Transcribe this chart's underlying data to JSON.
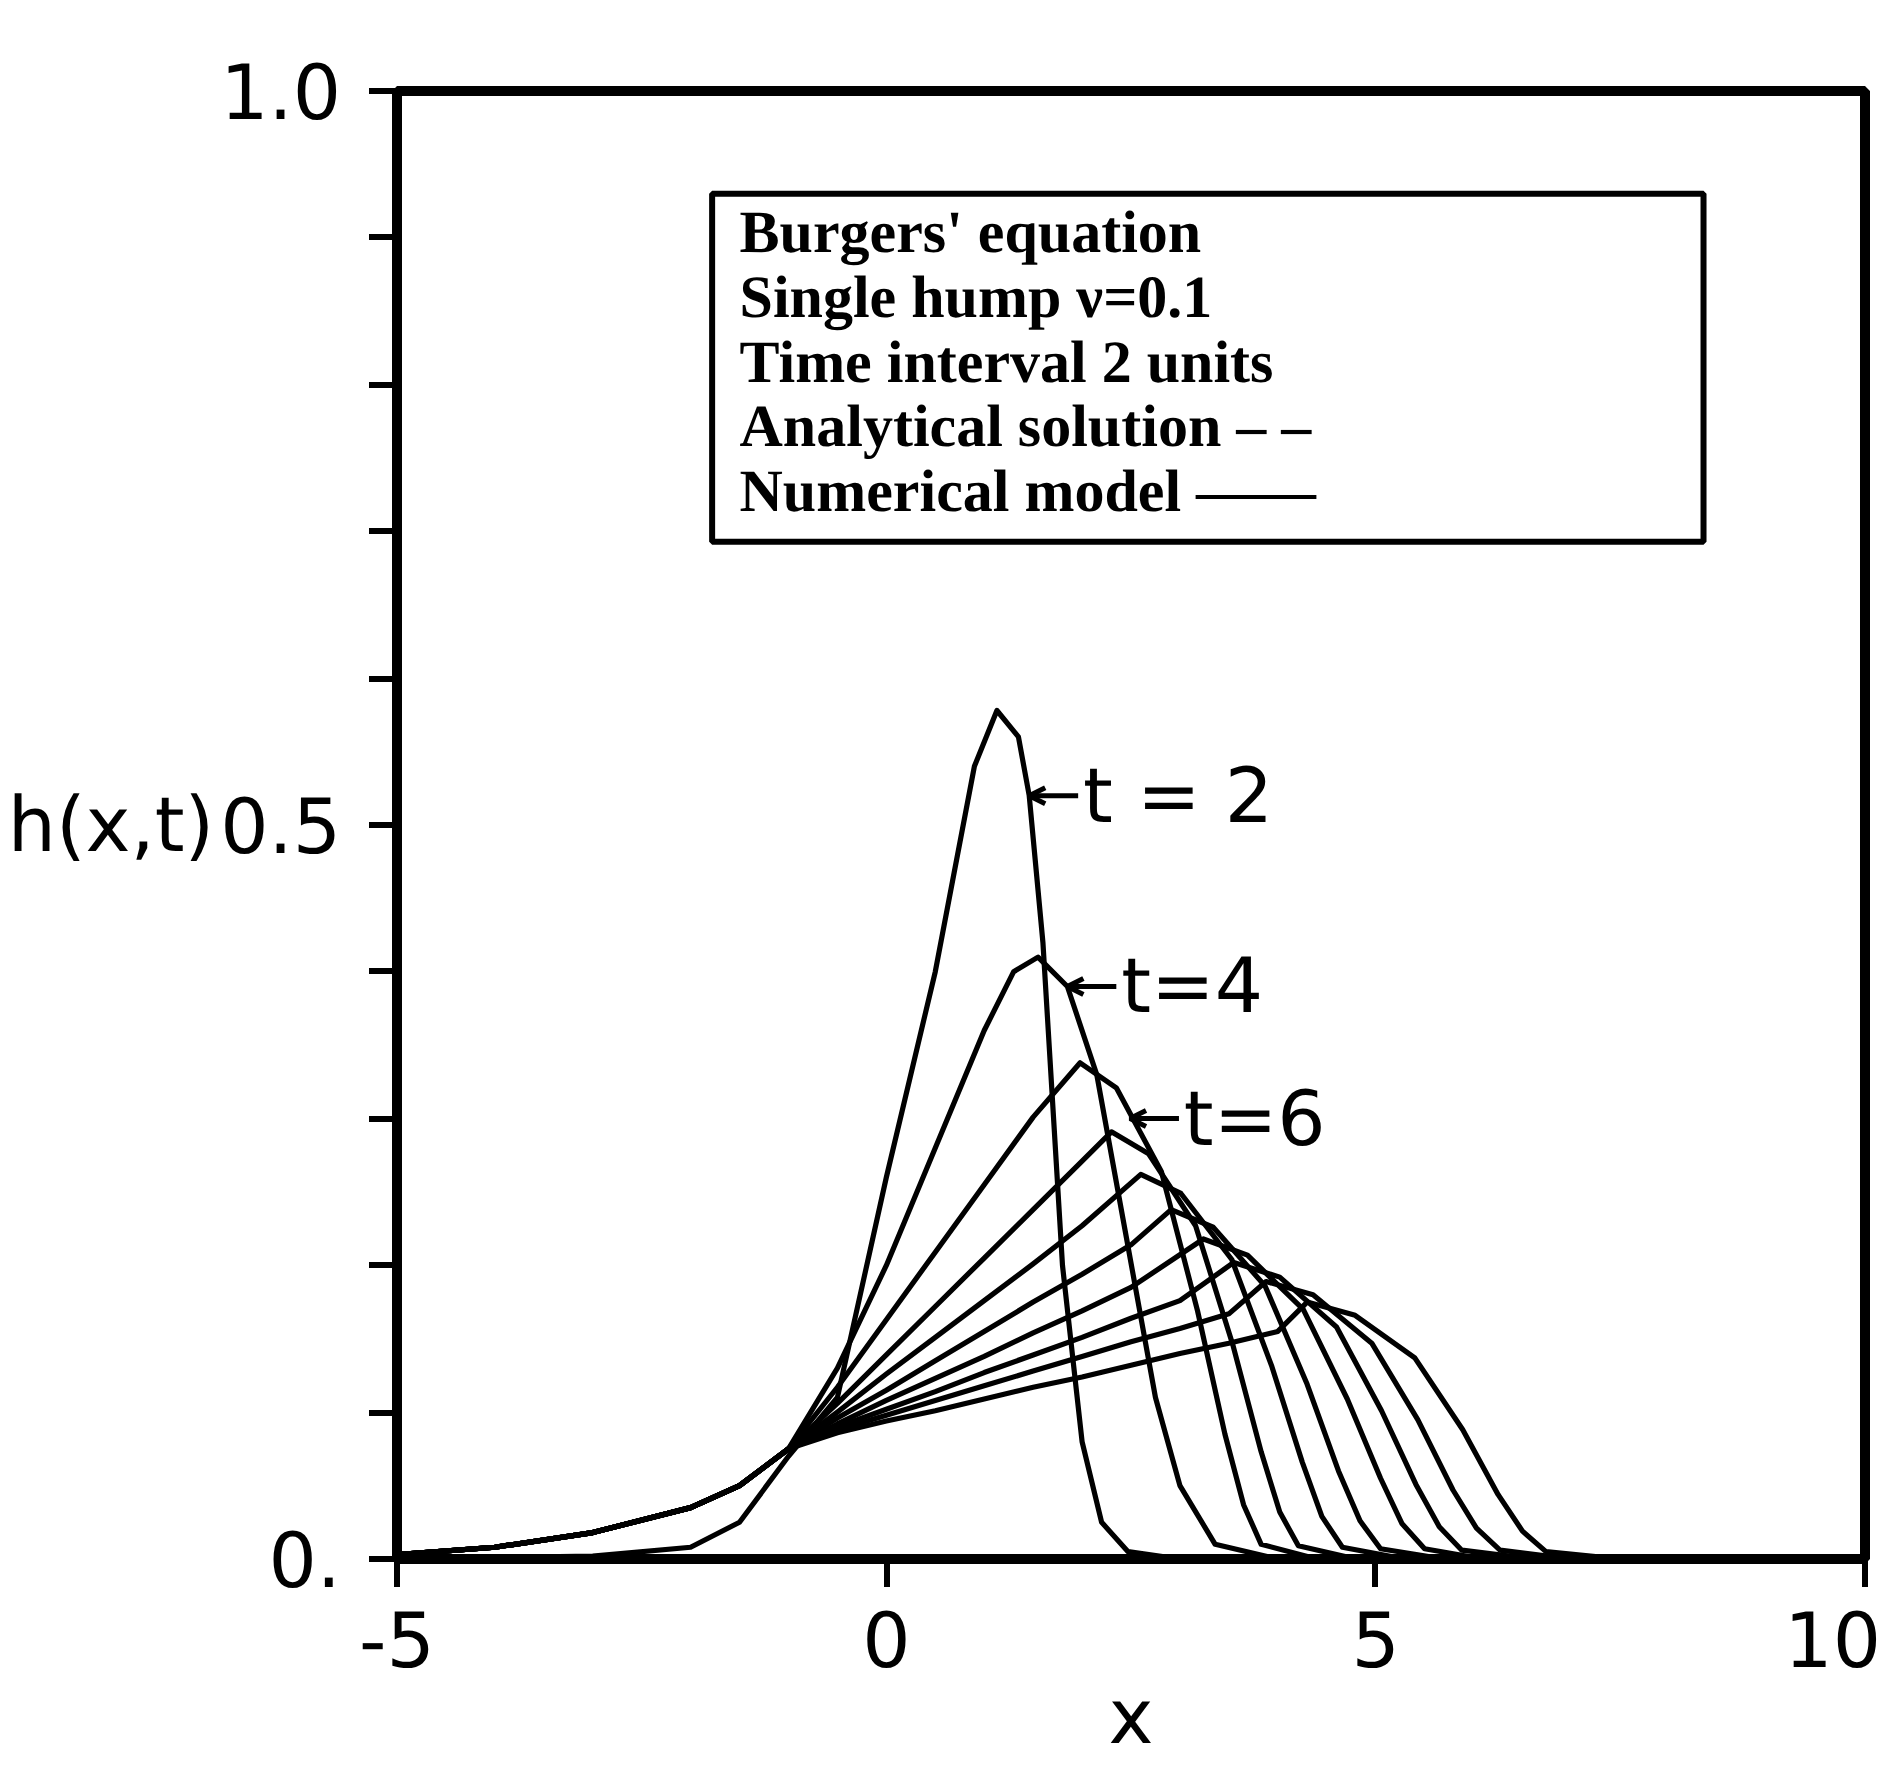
{
  "chart_data": {
    "type": "line",
    "xlabel": "x",
    "ylabel": "h(x,t)",
    "xlim": [
      -5,
      10
    ],
    "ylim": [
      0,
      1.0
    ],
    "xticks": [
      -5,
      0,
      5,
      10
    ],
    "yticks": [
      {
        "value": 0,
        "label": "0."
      },
      {
        "value": 0.1,
        "label": null
      },
      {
        "value": 0.2,
        "label": null
      },
      {
        "value": 0.3,
        "label": null
      },
      {
        "value": 0.4,
        "label": null
      },
      {
        "value": 0.5,
        "label": "0.5"
      },
      {
        "value": 0.6,
        "label": null
      },
      {
        "value": 0.7,
        "label": null
      },
      {
        "value": 0.8,
        "label": null
      },
      {
        "value": 0.9,
        "label": null
      },
      {
        "value": 1.0,
        "label": "1.0"
      }
    ],
    "grid": false,
    "marker": "none",
    "line_style": "solid",
    "annotations": [
      {
        "text": "t = 2",
        "x": 1.46,
        "y": 0.52
      },
      {
        "text": "t=4",
        "x": 1.85,
        "y": 0.39
      },
      {
        "text": "t=6",
        "x": 2.49,
        "y": 0.3
      },
      "Burgers' equation",
      "Single hump  ν=0.1",
      "Time interval 2 units",
      "Analytical solution – –",
      "Numerical model  ——"
    ],
    "series": [
      {
        "color": "#000000",
        "x": [
          -5,
          -3,
          -2,
          -1.5,
          -1,
          -0.5,
          0,
          0.5,
          0.9,
          1.13,
          1.35,
          1.46,
          1.6,
          1.8,
          2.0,
          2.2,
          2.47,
          3
        ],
        "values": [
          0,
          0.002,
          0.008,
          0.025,
          0.07,
          0.11,
          0.26,
          0.4,
          0.54,
          0.578,
          0.56,
          0.52,
          0.42,
          0.2,
          0.08,
          0.025,
          0.005,
          0
        ]
      },
      {
        "color": "#000000",
        "x": [
          -5,
          -4,
          -3,
          -2,
          -1.5,
          -1,
          -0.5,
          0,
          0.5,
          1.0,
          1.3,
          1.55,
          1.85,
          2.15,
          2.45,
          2.75,
          3.0,
          3.36,
          4
        ],
        "values": [
          0.003,
          0.008,
          0.018,
          0.035,
          0.05,
          0.075,
          0.13,
          0.2,
          0.28,
          0.36,
          0.4,
          0.41,
          0.39,
          0.33,
          0.22,
          0.11,
          0.05,
          0.01,
          0
        ]
      },
      {
        "color": "#000000",
        "x": [
          -5,
          -4,
          -3,
          -2,
          -1.5,
          -1,
          -0.5,
          0,
          0.5,
          1.0,
          1.5,
          1.98,
          2.35,
          2.81,
          3.18,
          3.46,
          3.65,
          3.83,
          4.4
        ],
        "values": [
          0.003,
          0.008,
          0.018,
          0.035,
          0.05,
          0.075,
          0.117,
          0.163,
          0.209,
          0.255,
          0.301,
          0.338,
          0.321,
          0.264,
          0.169,
          0.085,
          0.037,
          0.01,
          0
        ]
      },
      {
        "color": "#000000",
        "x": [
          -5,
          -4,
          -3,
          -2,
          -1.5,
          -1,
          -0.5,
          0,
          0.5,
          1.0,
          1.5,
          2.0,
          2.3,
          2.68,
          3.16,
          3.54,
          3.83,
          4.02,
          4.21,
          4.8
        ],
        "values": [
          0.003,
          0.008,
          0.018,
          0.035,
          0.05,
          0.075,
          0.106,
          0.139,
          0.172,
          0.205,
          0.238,
          0.271,
          0.291,
          0.276,
          0.227,
          0.146,
          0.073,
          0.032,
          0.009,
          0
        ]
      },
      {
        "color": "#000000",
        "x": [
          -5,
          -4,
          -3,
          -2,
          -1.5,
          -1,
          -0.5,
          0,
          0.5,
          1.0,
          1.5,
          2.0,
          2.6,
          3.01,
          3.53,
          3.94,
          4.25,
          4.45,
          4.66,
          5.3
        ],
        "values": [
          0.003,
          0.008,
          0.018,
          0.035,
          0.05,
          0.075,
          0.1,
          0.126,
          0.151,
          0.176,
          0.201,
          0.227,
          0.262,
          0.249,
          0.204,
          0.131,
          0.066,
          0.029,
          0.008,
          0
        ]
      },
      {
        "color": "#000000",
        "x": [
          -5,
          -4,
          -3,
          -2,
          -1.5,
          -1,
          -0.5,
          0,
          0.5,
          1.0,
          1.5,
          2.0,
          2.5,
          2.91,
          3.34,
          3.87,
          4.3,
          4.62,
          4.84,
          5.05,
          5.7
        ],
        "values": [
          0.003,
          0.008,
          0.018,
          0.035,
          0.05,
          0.075,
          0.096,
          0.115,
          0.135,
          0.155,
          0.175,
          0.194,
          0.214,
          0.238,
          0.226,
          0.186,
          0.119,
          0.06,
          0.026,
          0.007,
          0
        ]
      },
      {
        "color": "#000000",
        "x": [
          -5,
          -4,
          -3,
          -2,
          -1.5,
          -1,
          -0.5,
          0,
          0.5,
          1.0,
          1.5,
          2.0,
          2.5,
          3.24,
          3.69,
          4.26,
          4.71,
          5.05,
          5.27,
          5.5,
          6.1
        ],
        "values": [
          0.003,
          0.008,
          0.018,
          0.035,
          0.05,
          0.075,
          0.092,
          0.108,
          0.123,
          0.138,
          0.154,
          0.169,
          0.185,
          0.218,
          0.207,
          0.17,
          0.109,
          0.055,
          0.024,
          0.007,
          0
        ]
      },
      {
        "color": "#000000",
        "x": [
          -5,
          -4,
          -3,
          -2,
          -1.5,
          -1,
          -0.5,
          0,
          0.5,
          1.0,
          1.5,
          2.0,
          2.5,
          3.0,
          3.55,
          4.02,
          4.6,
          5.06,
          5.41,
          5.65,
          5.88,
          6.6
        ],
        "values": [
          0.003,
          0.008,
          0.018,
          0.035,
          0.05,
          0.075,
          0.09,
          0.102,
          0.114,
          0.127,
          0.139,
          0.151,
          0.164,
          0.176,
          0.202,
          0.192,
          0.158,
          0.101,
          0.051,
          0.022,
          0.006,
          0
        ]
      },
      {
        "color": "#000000",
        "x": [
          -5,
          -4,
          -3,
          -2,
          -1.5,
          -1,
          -0.5,
          0,
          0.5,
          1.0,
          1.5,
          2.0,
          2.5,
          3.0,
          3.5,
          3.88,
          4.36,
          4.96,
          5.43,
          5.79,
          6.03,
          6.27,
          7.0
        ],
        "values": [
          0.003,
          0.008,
          0.018,
          0.035,
          0.05,
          0.075,
          0.088,
          0.098,
          0.108,
          0.118,
          0.128,
          0.138,
          0.148,
          0.157,
          0.167,
          0.189,
          0.18,
          0.147,
          0.095,
          0.047,
          0.021,
          0.006,
          0
        ]
      },
      {
        "color": "#000000",
        "x": [
          -5,
          -4,
          -3,
          -2,
          -1.5,
          -1,
          -0.5,
          0,
          0.5,
          1.0,
          1.5,
          2.0,
          2.5,
          3.0,
          3.5,
          4.0,
          4.3,
          4.79,
          5.4,
          5.89,
          6.25,
          6.5,
          6.74,
          7.5
        ],
        "values": [
          0.003,
          0.008,
          0.018,
          0.035,
          0.05,
          0.075,
          0.086,
          0.094,
          0.101,
          0.109,
          0.117,
          0.124,
          0.132,
          0.14,
          0.147,
          0.155,
          0.175,
          0.166,
          0.137,
          0.088,
          0.044,
          0.019,
          0.005,
          0
        ]
      }
    ]
  }
}
